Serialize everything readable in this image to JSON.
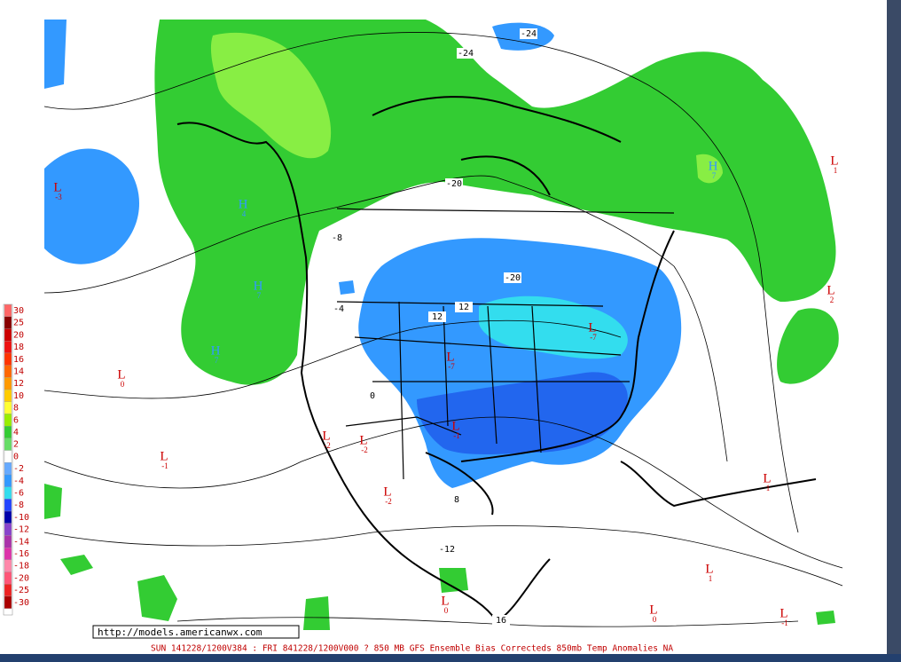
{
  "footer": {
    "url": "http://models.americanwx.com",
    "caption": "SUN 141228/1200V384 : FRI 841228/1200V000  ? 850 MB GFS Ensemble Bias Correcteds 850mb Temp Anomalies NA"
  },
  "legend": [
    {
      "label": "30",
      "color": "#ff6666"
    },
    {
      "label": "25",
      "color": "#880000"
    },
    {
      "label": "20",
      "color": "#cc0000"
    },
    {
      "label": "18",
      "color": "#ee1111"
    },
    {
      "label": "16",
      "color": "#ff3300"
    },
    {
      "label": "14",
      "color": "#ff6600"
    },
    {
      "label": "12",
      "color": "#ff9900"
    },
    {
      "label": "10",
      "color": "#ffcc00"
    },
    {
      "label": "8",
      "color": "#ffff33"
    },
    {
      "label": "6",
      "color": "#99ee00"
    },
    {
      "label": "4",
      "color": "#33cc33"
    },
    {
      "label": "2",
      "color": "#66dd66"
    },
    {
      "label": "0",
      "color": "#ffffff"
    },
    {
      "label": "-2",
      "color": "#66aaff"
    },
    {
      "label": "-4",
      "color": "#3399ff"
    },
    {
      "label": "-6",
      "color": "#33ddee"
    },
    {
      "label": "-8",
      "color": "#2244ff"
    },
    {
      "label": "-10",
      "color": "#0000aa"
    },
    {
      "label": "-12",
      "color": "#8844cc"
    },
    {
      "label": "-14",
      "color": "#aa33aa"
    },
    {
      "label": "-16",
      "color": "#dd33aa"
    },
    {
      "label": "-18",
      "color": "#ff88aa"
    },
    {
      "label": "-20",
      "color": "#ff5577"
    },
    {
      "label": "-25",
      "color": "#ee2222"
    },
    {
      "label": "-30",
      "color": "#aa0000"
    }
  ],
  "pressure_centers": [
    {
      "letter": "L",
      "value": "-3"
    },
    {
      "letter": "L",
      "value": "0"
    },
    {
      "letter": "L",
      "value": "-1"
    },
    {
      "letter": "L",
      "value": "-2"
    },
    {
      "letter": "L",
      "value": "-2"
    },
    {
      "letter": "L",
      "value": "-2"
    },
    {
      "letter": "L",
      "value": "-1"
    },
    {
      "letter": "L",
      "value": "-7"
    },
    {
      "letter": "L",
      "value": "-7"
    },
    {
      "letter": "L",
      "value": "1"
    },
    {
      "letter": "L",
      "value": "2"
    },
    {
      "letter": "L",
      "value": "1"
    },
    {
      "letter": "L",
      "value": "1"
    },
    {
      "letter": "L",
      "value": "0"
    },
    {
      "letter": "L",
      "value": "0"
    },
    {
      "letter": "L",
      "value": "-1"
    },
    {
      "letter": "H",
      "value": "7"
    },
    {
      "letter": "H",
      "value": "4"
    },
    {
      "letter": "H",
      "value": "7"
    },
    {
      "letter": "H",
      "value": "7"
    }
  ],
  "contour_labels": [
    "-24",
    "-24",
    "-20",
    "-20",
    "-8",
    "-4",
    "12",
    "12",
    "0",
    "8",
    "-12",
    "16"
  ]
}
